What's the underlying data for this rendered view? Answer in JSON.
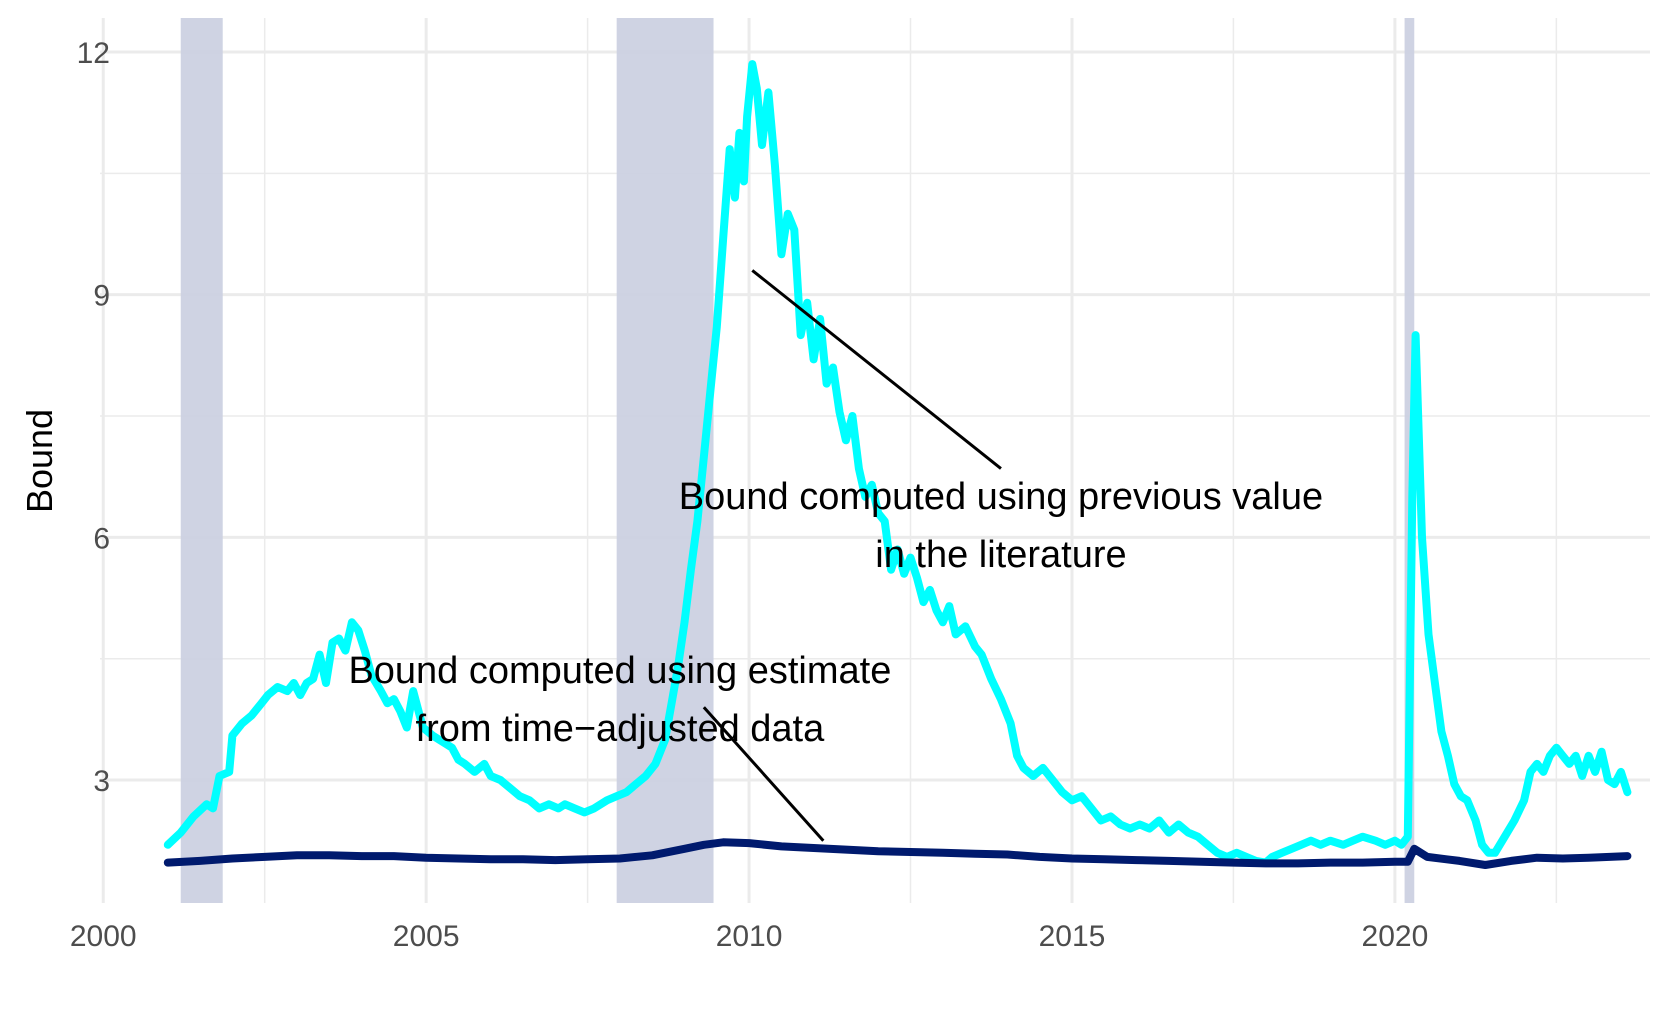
{
  "chart_data": {
    "type": "line",
    "title": "",
    "xlabel": "",
    "ylabel": "Bound",
    "xlim": [
      1999.95,
      2023.95
    ],
    "ylim": [
      1.48,
      12.42
    ],
    "x_ticks": [
      2000,
      2005,
      2010,
      2015,
      2020
    ],
    "y_ticks": [
      3,
      6,
      9,
      12
    ],
    "grid": true,
    "legend": "none",
    "recessions": [
      [
        2001.2,
        2001.85
      ],
      [
        2007.95,
        2009.45
      ],
      [
        2020.15,
        2020.3
      ]
    ],
    "colors": {
      "recession": "#ccd1e2",
      "grid": "#ebebeb",
      "annotation": "#000000"
    },
    "series": [
      {
        "color": "#00ffff",
        "points": [
          [
            2001.0,
            2.2
          ],
          [
            2001.2,
            2.35
          ],
          [
            2001.4,
            2.55
          ],
          [
            2001.6,
            2.7
          ],
          [
            2001.7,
            2.65
          ],
          [
            2001.8,
            3.05
          ],
          [
            2001.95,
            3.1
          ],
          [
            2002.0,
            3.55
          ],
          [
            2002.15,
            3.7
          ],
          [
            2002.3,
            3.8
          ],
          [
            2002.45,
            3.95
          ],
          [
            2002.55,
            4.05
          ],
          [
            2002.7,
            4.15
          ],
          [
            2002.85,
            4.1
          ],
          [
            2002.95,
            4.2
          ],
          [
            2003.05,
            4.05
          ],
          [
            2003.15,
            4.2
          ],
          [
            2003.25,
            4.25
          ],
          [
            2003.35,
            4.55
          ],
          [
            2003.45,
            4.2
          ],
          [
            2003.55,
            4.7
          ],
          [
            2003.65,
            4.75
          ],
          [
            2003.75,
            4.6
          ],
          [
            2003.85,
            4.95
          ],
          [
            2003.95,
            4.85
          ],
          [
            2004.05,
            4.6
          ],
          [
            2004.15,
            4.3
          ],
          [
            2004.3,
            4.1
          ],
          [
            2004.4,
            3.95
          ],
          [
            2004.5,
            4.0
          ],
          [
            2004.6,
            3.85
          ],
          [
            2004.7,
            3.65
          ],
          [
            2004.8,
            4.1
          ],
          [
            2004.95,
            3.65
          ],
          [
            2005.1,
            3.55
          ],
          [
            2005.2,
            3.5
          ],
          [
            2005.3,
            3.45
          ],
          [
            2005.4,
            3.4
          ],
          [
            2005.5,
            3.25
          ],
          [
            2005.6,
            3.2
          ],
          [
            2005.75,
            3.1
          ],
          [
            2005.9,
            3.2
          ],
          [
            2006.0,
            3.05
          ],
          [
            2006.15,
            3.0
          ],
          [
            2006.3,
            2.9
          ],
          [
            2006.45,
            2.8
          ],
          [
            2006.6,
            2.75
          ],
          [
            2006.75,
            2.65
          ],
          [
            2006.9,
            2.7
          ],
          [
            2007.05,
            2.65
          ],
          [
            2007.15,
            2.7
          ],
          [
            2007.3,
            2.65
          ],
          [
            2007.45,
            2.6
          ],
          [
            2007.6,
            2.65
          ],
          [
            2007.8,
            2.75
          ],
          [
            2007.95,
            2.8
          ],
          [
            2008.1,
            2.85
          ],
          [
            2008.25,
            2.95
          ],
          [
            2008.4,
            3.05
          ],
          [
            2008.55,
            3.2
          ],
          [
            2008.7,
            3.5
          ],
          [
            2008.8,
            3.95
          ],
          [
            2008.9,
            4.4
          ],
          [
            2009.0,
            4.95
          ],
          [
            2009.1,
            5.6
          ],
          [
            2009.2,
            6.2
          ],
          [
            2009.3,
            7.0
          ],
          [
            2009.4,
            7.8
          ],
          [
            2009.5,
            8.6
          ],
          [
            2009.6,
            9.7
          ],
          [
            2009.7,
            10.8
          ],
          [
            2009.78,
            10.2
          ],
          [
            2009.85,
            11.0
          ],
          [
            2009.92,
            10.4
          ],
          [
            2009.97,
            11.2
          ],
          [
            2010.05,
            11.85
          ],
          [
            2010.12,
            11.55
          ],
          [
            2010.2,
            10.85
          ],
          [
            2010.3,
            11.5
          ],
          [
            2010.4,
            10.6
          ],
          [
            2010.5,
            9.5
          ],
          [
            2010.6,
            10.0
          ],
          [
            2010.7,
            9.8
          ],
          [
            2010.8,
            8.5
          ],
          [
            2010.9,
            8.9
          ],
          [
            2011.0,
            8.2
          ],
          [
            2011.1,
            8.7
          ],
          [
            2011.2,
            7.9
          ],
          [
            2011.3,
            8.1
          ],
          [
            2011.4,
            7.55
          ],
          [
            2011.5,
            7.2
          ],
          [
            2011.6,
            7.5
          ],
          [
            2011.7,
            6.85
          ],
          [
            2011.8,
            6.5
          ],
          [
            2011.9,
            6.65
          ],
          [
            2012.0,
            6.3
          ],
          [
            2012.1,
            6.2
          ],
          [
            2012.2,
            5.6
          ],
          [
            2012.3,
            5.85
          ],
          [
            2012.4,
            5.55
          ],
          [
            2012.5,
            5.75
          ],
          [
            2012.6,
            5.5
          ],
          [
            2012.7,
            5.2
          ],
          [
            2012.8,
            5.35
          ],
          [
            2012.9,
            5.1
          ],
          [
            2013.0,
            4.95
          ],
          [
            2013.1,
            5.15
          ],
          [
            2013.2,
            4.8
          ],
          [
            2013.35,
            4.9
          ],
          [
            2013.5,
            4.65
          ],
          [
            2013.6,
            4.55
          ],
          [
            2013.75,
            4.25
          ],
          [
            2013.9,
            4.0
          ],
          [
            2014.05,
            3.7
          ],
          [
            2014.15,
            3.3
          ],
          [
            2014.25,
            3.15
          ],
          [
            2014.4,
            3.05
          ],
          [
            2014.55,
            3.15
          ],
          [
            2014.7,
            3.0
          ],
          [
            2014.85,
            2.85
          ],
          [
            2015.0,
            2.75
          ],
          [
            2015.15,
            2.8
          ],
          [
            2015.3,
            2.65
          ],
          [
            2015.45,
            2.5
          ],
          [
            2015.6,
            2.55
          ],
          [
            2015.75,
            2.45
          ],
          [
            2015.9,
            2.4
          ],
          [
            2016.05,
            2.45
          ],
          [
            2016.2,
            2.4
          ],
          [
            2016.35,
            2.5
          ],
          [
            2016.5,
            2.35
          ],
          [
            2016.65,
            2.45
          ],
          [
            2016.8,
            2.35
          ],
          [
            2016.95,
            2.3
          ],
          [
            2017.1,
            2.2
          ],
          [
            2017.25,
            2.1
          ],
          [
            2017.4,
            2.05
          ],
          [
            2017.55,
            2.1
          ],
          [
            2017.7,
            2.05
          ],
          [
            2017.85,
            2.0
          ],
          [
            2018.0,
            1.98
          ],
          [
            2018.1,
            2.05
          ],
          [
            2018.25,
            2.1
          ],
          [
            2018.4,
            2.15
          ],
          [
            2018.55,
            2.2
          ],
          [
            2018.7,
            2.25
          ],
          [
            2018.85,
            2.2
          ],
          [
            2019.0,
            2.25
          ],
          [
            2019.2,
            2.2
          ],
          [
            2019.35,
            2.25
          ],
          [
            2019.5,
            2.3
          ],
          [
            2019.7,
            2.25
          ],
          [
            2019.85,
            2.2
          ],
          [
            2020.0,
            2.25
          ],
          [
            2020.1,
            2.2
          ],
          [
            2020.2,
            2.3
          ],
          [
            2020.27,
            6.5
          ],
          [
            2020.32,
            8.5
          ],
          [
            2020.42,
            6.0
          ],
          [
            2020.52,
            4.8
          ],
          [
            2020.62,
            4.2
          ],
          [
            2020.72,
            3.6
          ],
          [
            2020.82,
            3.3
          ],
          [
            2020.92,
            2.95
          ],
          [
            2021.02,
            2.8
          ],
          [
            2021.12,
            2.75
          ],
          [
            2021.25,
            2.5
          ],
          [
            2021.35,
            2.2
          ],
          [
            2021.45,
            2.1
          ],
          [
            2021.55,
            2.1
          ],
          [
            2021.7,
            2.3
          ],
          [
            2021.85,
            2.5
          ],
          [
            2022.0,
            2.75
          ],
          [
            2022.1,
            3.1
          ],
          [
            2022.2,
            3.2
          ],
          [
            2022.3,
            3.1
          ],
          [
            2022.4,
            3.3
          ],
          [
            2022.5,
            3.4
          ],
          [
            2022.6,
            3.3
          ],
          [
            2022.7,
            3.2
          ],
          [
            2022.8,
            3.3
          ],
          [
            2022.9,
            3.05
          ],
          [
            2023.0,
            3.3
          ],
          [
            2023.1,
            3.1
          ],
          [
            2023.2,
            3.35
          ],
          [
            2023.3,
            3.0
          ],
          [
            2023.4,
            2.95
          ],
          [
            2023.5,
            3.1
          ],
          [
            2023.6,
            2.85
          ]
        ]
      },
      {
        "color": "#001a6e",
        "points": [
          [
            2001.0,
            1.98
          ],
          [
            2001.5,
            2.0
          ],
          [
            2002.0,
            2.03
          ],
          [
            2002.5,
            2.05
          ],
          [
            2003.0,
            2.07
          ],
          [
            2003.5,
            2.07
          ],
          [
            2004.0,
            2.06
          ],
          [
            2004.5,
            2.06
          ],
          [
            2005.0,
            2.04
          ],
          [
            2005.5,
            2.03
          ],
          [
            2006.0,
            2.02
          ],
          [
            2006.5,
            2.02
          ],
          [
            2007.0,
            2.01
          ],
          [
            2007.5,
            2.02
          ],
          [
            2008.0,
            2.03
          ],
          [
            2008.5,
            2.07
          ],
          [
            2009.0,
            2.15
          ],
          [
            2009.3,
            2.2
          ],
          [
            2009.6,
            2.23
          ],
          [
            2010.0,
            2.22
          ],
          [
            2010.5,
            2.18
          ],
          [
            2011.0,
            2.16
          ],
          [
            2011.5,
            2.14
          ],
          [
            2012.0,
            2.12
          ],
          [
            2012.5,
            2.11
          ],
          [
            2013.0,
            2.1
          ],
          [
            2013.5,
            2.09
          ],
          [
            2014.0,
            2.08
          ],
          [
            2014.5,
            2.05
          ],
          [
            2015.0,
            2.03
          ],
          [
            2015.5,
            2.02
          ],
          [
            2016.0,
            2.01
          ],
          [
            2016.5,
            2.0
          ],
          [
            2017.0,
            1.99
          ],
          [
            2017.5,
            1.98
          ],
          [
            2018.0,
            1.97
          ],
          [
            2018.5,
            1.97
          ],
          [
            2019.0,
            1.98
          ],
          [
            2019.5,
            1.98
          ],
          [
            2020.0,
            1.99
          ],
          [
            2020.2,
            1.99
          ],
          [
            2020.3,
            2.15
          ],
          [
            2020.5,
            2.05
          ],
          [
            2020.8,
            2.02
          ],
          [
            2021.0,
            2.0
          ],
          [
            2021.4,
            1.95
          ],
          [
            2021.8,
            2.0
          ],
          [
            2022.2,
            2.04
          ],
          [
            2022.6,
            2.03
          ],
          [
            2023.0,
            2.04
          ],
          [
            2023.6,
            2.06
          ]
        ]
      }
    ],
    "annotations": [
      {
        "lines": [
          "Bound computed using previous value",
          "in the literature"
        ],
        "anchor": [
          2013.9,
          6.35
        ],
        "pointer_from": [
          2013.9,
          6.85
        ],
        "pointer_to": [
          2010.05,
          9.3
        ]
      },
      {
        "lines": [
          "Bound computed using estimate",
          "from time−adjusted data"
        ],
        "anchor": [
          2008.0,
          4.2
        ],
        "pointer_from": [
          2009.3,
          3.9
        ],
        "pointer_to": [
          2011.15,
          2.25
        ]
      }
    ]
  }
}
